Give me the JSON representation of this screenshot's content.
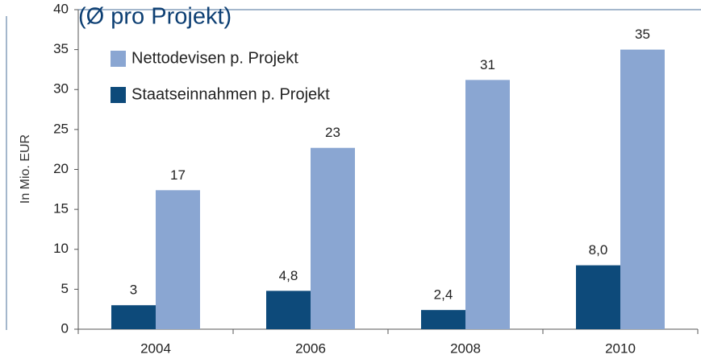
{
  "chart_data": {
    "type": "bar",
    "title": "(Ø pro Projekt)",
    "y_label": "In Mio. EUR",
    "categories": [
      "2004",
      "2006",
      "2008",
      "2010"
    ],
    "series": [
      {
        "name": "Staatseinnahmen p. Projekt",
        "color": "#0d4a7a",
        "values": [
          3,
          4.8,
          2.4,
          8.0
        ],
        "value_labels": [
          "3",
          "4,8",
          "2,4",
          "8,0"
        ]
      },
      {
        "name": "Nettodevisen p. Projekt",
        "color": "#8aa6d2",
        "values": [
          17.4,
          22.7,
          31.2,
          35.0
        ],
        "value_labels": [
          "17",
          "23",
          "31",
          "35"
        ]
      }
    ],
    "ylim": [
      0,
      40
    ],
    "yticks": [
      0,
      5,
      10,
      15,
      20,
      25,
      30,
      35,
      40
    ],
    "grid": false
  }
}
